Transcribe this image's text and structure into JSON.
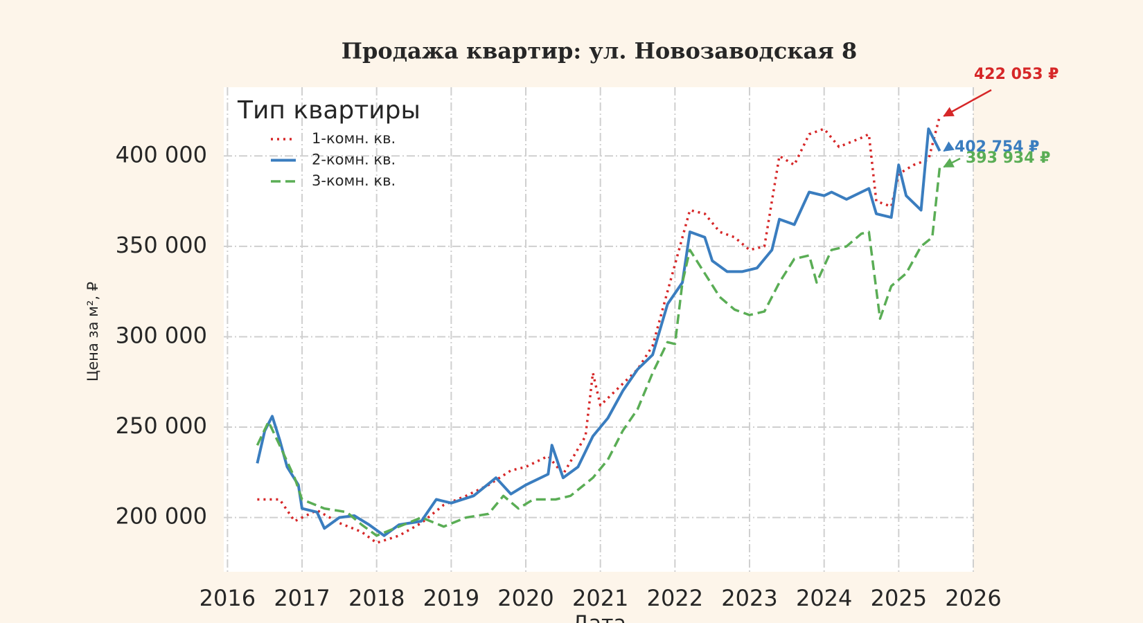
{
  "chart_data": {
    "type": "line",
    "title": "Продажа квартир: ул. Новозаводская 8",
    "x_label": "Дата",
    "y_label": "Цена за м², ₽",
    "legend_title": "Тип квартиры",
    "legend": "upper left",
    "grid": true,
    "xlim": [
      2015.95,
      2026
    ],
    "xticks": [
      2016,
      2017,
      2018,
      2019,
      2020,
      2021,
      2022,
      2023,
      2024,
      2025,
      2026
    ],
    "ylim": [
      170000,
      438000
    ],
    "yticks": [
      {
        "value": 200000,
        "label": "200 000"
      },
      {
        "value": 250000,
        "label": "250 000"
      },
      {
        "value": 300000,
        "label": "300 000"
      },
      {
        "value": 350000,
        "label": "350 000"
      },
      {
        "value": 400000,
        "label": "400 000"
      }
    ],
    "series": [
      {
        "name": "1-комн. кв.",
        "color": "#d62728",
        "linestyle": "dotted",
        "x": [
          2016.4,
          2016.7,
          2016.9,
          2017.2,
          2017.5,
          2017.8,
          2018.0,
          2018.3,
          2018.6,
          2018.9,
          2019.2,
          2019.5,
          2019.8,
          2020.0,
          2020.3,
          2020.5,
          2020.8,
          2020.9,
          2021.0,
          2021.2,
          2021.5,
          2021.7,
          2021.9,
          2022.0,
          2022.2,
          2022.4,
          2022.6,
          2022.8,
          2023.0,
          2023.2,
          2023.4,
          2023.6,
          2023.8,
          2024.0,
          2024.2,
          2024.5,
          2024.6,
          2024.7,
          2024.9,
          2025.0,
          2025.2,
          2025.4,
          2025.55
        ],
        "values": [
          210000,
          210000,
          198000,
          204000,
          197000,
          192000,
          186000,
          190000,
          197000,
          207000,
          212000,
          218000,
          226000,
          228000,
          234000,
          224000,
          245000,
          280000,
          262000,
          270000,
          282000,
          295000,
          325000,
          340000,
          370000,
          368000,
          358000,
          355000,
          348000,
          350000,
          400000,
          395000,
          412000,
          415000,
          405000,
          410000,
          412000,
          375000,
          372000,
          390000,
          395000,
          398000,
          422053
        ]
      },
      {
        "name": "2-комн. кв.",
        "color": "#3a7dbf",
        "linestyle": "solid",
        "x": [
          2016.4,
          2016.5,
          2016.6,
          2016.7,
          2016.8,
          2016.95,
          2017.0,
          2017.2,
          2017.3,
          2017.5,
          2017.7,
          2017.9,
          2018.1,
          2018.3,
          2018.6,
          2018.8,
          2019.0,
          2019.3,
          2019.6,
          2019.8,
          2020.0,
          2020.3,
          2020.35,
          2020.5,
          2020.7,
          2020.9,
          2021.1,
          2021.3,
          2021.5,
          2021.7,
          2021.9,
          2022.1,
          2022.2,
          2022.4,
          2022.5,
          2022.7,
          2022.9,
          2023.1,
          2023.3,
          2023.4,
          2023.6,
          2023.8,
          2024.0,
          2024.1,
          2024.3,
          2024.5,
          2024.6,
          2024.7,
          2024.9,
          2025.0,
          2025.1,
          2025.3,
          2025.4,
          2025.55
        ],
        "values": [
          230000,
          248000,
          256000,
          243000,
          228000,
          218000,
          205000,
          203000,
          194000,
          200000,
          201000,
          196000,
          190000,
          196000,
          198000,
          210000,
          208000,
          212000,
          222000,
          213000,
          218000,
          224000,
          240000,
          222000,
          228000,
          245000,
          255000,
          270000,
          282000,
          290000,
          318000,
          330000,
          358000,
          355000,
          342000,
          336000,
          336000,
          338000,
          348000,
          365000,
          362000,
          380000,
          378000,
          380000,
          376000,
          380000,
          382000,
          368000,
          366000,
          395000,
          378000,
          370000,
          415000,
          402754
        ]
      },
      {
        "name": "3-комн. кв.",
        "color": "#5aad55",
        "linestyle": "dashed",
        "x": [
          2016.4,
          2016.55,
          2016.7,
          2016.9,
          2017.0,
          2017.3,
          2017.6,
          2017.8,
          2018.0,
          2018.3,
          2018.6,
          2018.9,
          2019.2,
          2019.5,
          2019.7,
          2019.9,
          2020.1,
          2020.4,
          2020.6,
          2020.9,
          2021.1,
          2021.3,
          2021.5,
          2021.7,
          2021.9,
          2022.0,
          2022.1,
          2022.2,
          2022.4,
          2022.6,
          2022.8,
          2023.0,
          2023.2,
          2023.4,
          2023.6,
          2023.8,
          2023.9,
          2024.1,
          2024.3,
          2024.5,
          2024.6,
          2024.75,
          2024.9,
          2025.1,
          2025.3,
          2025.45,
          2025.55
        ],
        "values": [
          240000,
          253000,
          240000,
          222000,
          210000,
          205000,
          203000,
          196000,
          190000,
          195000,
          200000,
          195000,
          200000,
          202000,
          212000,
          205000,
          210000,
          210000,
          212000,
          222000,
          232000,
          248000,
          260000,
          280000,
          297000,
          296000,
          330000,
          348000,
          335000,
          322000,
          315000,
          312000,
          314000,
          330000,
          343000,
          345000,
          330000,
          348000,
          350000,
          357000,
          358000,
          310000,
          328000,
          335000,
          350000,
          355000,
          393934
        ]
      }
    ],
    "annotations": [
      {
        "label": "422 053 ₽",
        "x": 2025.55,
        "y": 422053,
        "color": "#d62728"
      },
      {
        "label": "402 754 ₽",
        "x": 2025.55,
        "y": 402754,
        "color": "#3a7dbf"
      },
      {
        "label": "393 934 ₽",
        "x": 2025.55,
        "y": 393934,
        "color": "#5aad55"
      }
    ]
  }
}
